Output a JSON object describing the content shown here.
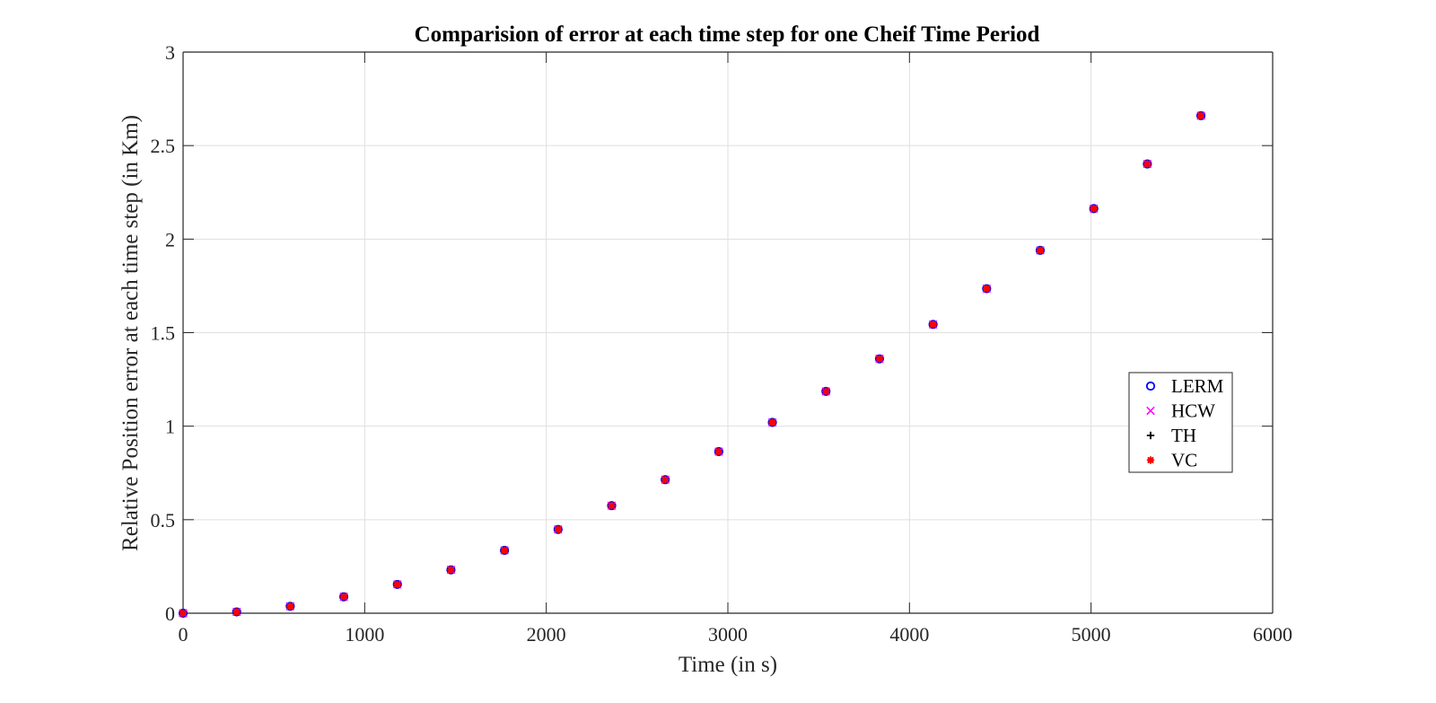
{
  "chart_data": {
    "type": "scatter",
    "title": "Comparision of error at each time step for one Cheif Time Period",
    "xlabel": "Time (in s)",
    "ylabel": "Relative Position error at each time step (in Km)",
    "xlim": [
      0,
      6000
    ],
    "ylim": [
      0,
      3
    ],
    "xticks": [
      0,
      1000,
      2000,
      3000,
      4000,
      5000,
      6000
    ],
    "yticks": [
      0,
      0.5,
      1,
      1.5,
      2,
      2.5,
      3
    ],
    "xtick_labels": [
      "0",
      "1000",
      "2000",
      "3000",
      "4000",
      "5000",
      "6000"
    ],
    "ytick_labels": [
      "0",
      "0.5",
      "1",
      "1.5",
      "2",
      "2.5",
      "3"
    ],
    "grid": true,
    "legend_position": "right",
    "x": [
      0,
      295,
      590,
      885,
      1180,
      1475,
      1770,
      2065,
      2360,
      2655,
      2950,
      3245,
      3540,
      3835,
      4130,
      4425,
      4720,
      5015,
      5310,
      5605
    ],
    "series": [
      {
        "name": "LERM",
        "marker": "circle",
        "color": "#0000ff",
        "values": [
          0.0,
          0.007,
          0.037,
          0.088,
          0.154,
          0.232,
          0.336,
          0.448,
          0.575,
          0.714,
          0.864,
          1.02,
          1.186,
          1.36,
          1.544,
          1.735,
          1.94,
          2.163,
          2.402,
          2.66
        ]
      },
      {
        "name": "HCW",
        "marker": "x",
        "color": "#ff00ff",
        "values": [
          0.0,
          0.007,
          0.037,
          0.088,
          0.154,
          0.232,
          0.336,
          0.448,
          0.575,
          0.714,
          0.864,
          1.02,
          1.186,
          1.36,
          1.544,
          1.735,
          1.94,
          2.163,
          2.402,
          2.66
        ]
      },
      {
        "name": "TH",
        "marker": "plus",
        "color": "#000000",
        "values": [
          0.0,
          0.007,
          0.037,
          0.088,
          0.154,
          0.232,
          0.336,
          0.448,
          0.575,
          0.714,
          0.864,
          1.02,
          1.186,
          1.36,
          1.544,
          1.735,
          1.94,
          2.163,
          2.402,
          2.66
        ]
      },
      {
        "name": "VC",
        "marker": "asterisk",
        "color": "#ff0000",
        "values": [
          0.0,
          0.007,
          0.037,
          0.088,
          0.154,
          0.232,
          0.336,
          0.448,
          0.575,
          0.714,
          0.864,
          1.02,
          1.186,
          1.36,
          1.544,
          1.735,
          1.94,
          2.163,
          2.402,
          2.66
        ]
      }
    ]
  }
}
